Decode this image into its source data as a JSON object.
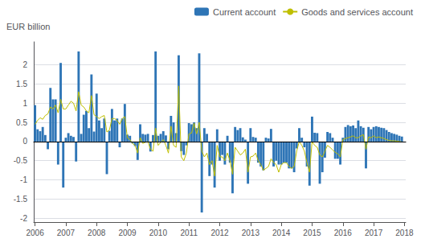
{
  "chart_data": {
    "type": "bar",
    "ylabel": "EUR billion",
    "x": [
      2006.0,
      2006.0833333333333,
      2006.1666666666667,
      2006.25,
      2006.3333333333333,
      2006.4166666666667,
      2006.5,
      2006.5833333333333,
      2006.6666666666667,
      2006.75,
      2006.8333333333333,
      2006.9166666666667,
      2007.0,
      2007.0833333333333,
      2007.1666666666667,
      2007.25,
      2007.3333333333333,
      2007.4166666666667,
      2007.5,
      2007.5833333333333,
      2007.6666666666667,
      2007.75,
      2007.8333333333333,
      2007.9166666666667,
      2008.0,
      2008.0833333333333,
      2008.1666666666667,
      2008.25,
      2008.3333333333333,
      2008.4166666666667,
      2008.5,
      2008.5833333333333,
      2008.6666666666667,
      2008.75,
      2008.8333333333333,
      2008.9166666666667,
      2009.0,
      2009.0833333333333,
      2009.1666666666667,
      2009.25,
      2009.3333333333333,
      2009.4166666666667,
      2009.5,
      2009.5833333333333,
      2009.6666666666667,
      2009.75,
      2009.8333333333333,
      2009.9166666666667,
      2010.0,
      2010.0833333333333,
      2010.1666666666667,
      2010.25,
      2010.3333333333333,
      2010.4166666666667,
      2010.5,
      2010.5833333333333,
      2010.6666666666667,
      2010.75,
      2010.8333333333333,
      2010.9166666666667,
      2011.0,
      2011.0833333333333,
      2011.1666666666667,
      2011.25,
      2011.3333333333333,
      2011.4166666666667,
      2011.5,
      2011.5833333333333,
      2011.6666666666667,
      2011.75,
      2011.8333333333333,
      2011.9166666666667,
      2012.0,
      2012.0833333333333,
      2012.1666666666667,
      2012.25,
      2012.3333333333333,
      2012.4166666666667,
      2012.5,
      2012.5833333333333,
      2012.6666666666667,
      2012.75,
      2012.8333333333333,
      2012.9166666666667,
      2013.0,
      2013.0833333333333,
      2013.1666666666667,
      2013.25,
      2013.3333333333333,
      2013.4166666666667,
      2013.5,
      2013.5833333333333,
      2013.6666666666667,
      2013.75,
      2013.8333333333333,
      2013.9166666666667,
      2014.0,
      2014.0833333333333,
      2014.1666666666667,
      2014.25,
      2014.3333333333333,
      2014.4166666666667,
      2014.5,
      2014.5833333333333,
      2014.6666666666667,
      2014.75,
      2014.8333333333333,
      2014.9166666666667,
      2015.0,
      2015.0833333333333,
      2015.1666666666667,
      2015.25,
      2015.3333333333333,
      2015.4166666666667,
      2015.5,
      2015.5833333333333,
      2015.6666666666667,
      2015.75,
      2015.8333333333333,
      2015.9166666666667,
      2016.0,
      2016.0833333333333,
      2016.1666666666667,
      2016.25,
      2016.3333333333333,
      2016.4166666666667,
      2016.5,
      2016.5833333333333,
      2016.6666666666667,
      2016.75,
      2016.8333333333333,
      2016.9166666666667,
      2017.0,
      2017.0833333333333,
      2017.1666666666667,
      2017.25,
      2017.3333333333333,
      2017.4166666666667,
      2017.5,
      2017.5833333333333,
      2017.6666666666667,
      2017.75,
      2017.8333333333333,
      2017.9166666666667
    ],
    "series": [
      {
        "name": "Current account",
        "type": "bar",
        "color": "#2E75B6",
        "values": [
          0.95,
          0.32,
          0.27,
          0.38,
          0.17,
          -0.2,
          1.4,
          1.1,
          1.1,
          -0.6,
          2.05,
          -1.2,
          0.1,
          0.22,
          0.15,
          0.12,
          -0.52,
          2.35,
          0.2,
          0.7,
          0.8,
          0.35,
          1.75,
          0.26,
          1.25,
          0.55,
          0.35,
          0.6,
          -0.85,
          0.28,
          0.85,
          0.55,
          0.6,
          -0.15,
          0.6,
          0.98,
          0.18,
          0.15,
          -0.05,
          -0.12,
          -0.48,
          0.45,
          0.2,
          0.18,
          0.2,
          -0.26,
          0.17,
          2.35,
          0.15,
          0.2,
          0.27,
          0.16,
          -0.2,
          0.67,
          0.5,
          0.22,
          2.25,
          -0.25,
          -0.35,
          -0.1,
          0.48,
          0.45,
          0.5,
          0.35,
          2.3,
          -1.85,
          0.35,
          0.2,
          -0.9,
          -0.6,
          -1.2,
          0.32,
          -0.5,
          -0.35,
          -0.6,
          0.15,
          -0.55,
          -1.35,
          0.38,
          0.3,
          0.35,
          0.11,
          0.05,
          -1.1,
          0.35,
          0.12,
          0.1,
          -0.55,
          -0.65,
          -0.75,
          0.1,
          0.08,
          0.33,
          -0.65,
          -0.5,
          -0.6,
          -0.6,
          -0.55,
          -0.55,
          -0.7,
          -0.7,
          -0.8,
          -0.18,
          0.35,
          0.1,
          -0.15,
          -0.65,
          -1.15,
          0.65,
          0.23,
          0.22,
          -1.1,
          -0.8,
          -0.42,
          0.25,
          0.22,
          0.1,
          -0.45,
          -0.45,
          -0.6,
          0.1,
          0.38,
          0.43,
          0.4,
          0.42,
          0.35,
          0.55,
          0.4,
          0.36,
          -0.7,
          0.38,
          0.32,
          0.38,
          0.4,
          0.38,
          0.36,
          0.35,
          0.3,
          0.25,
          0.22,
          0.2,
          0.18,
          0.15,
          0.13
        ]
      },
      {
        "name": "Goods and services account",
        "type": "line",
        "color": "#BFBF00",
        "values": [
          0.45,
          0.55,
          0.62,
          0.58,
          0.68,
          0.72,
          0.9,
          0.85,
          0.95,
          0.75,
          1.1,
          0.85,
          0.85,
          0.95,
          1.05,
          1.0,
          0.8,
          1.3,
          0.95,
          0.9,
          0.8,
          0.75,
          1.2,
          0.7,
          0.65,
          0.6,
          0.65,
          0.68,
          0.25,
          0.3,
          0.6,
          0.6,
          0.55,
          0.45,
          0.6,
          0.65,
          0.1,
          0.05,
          -0.05,
          -0.1,
          -0.3,
          0.1,
          -0.05,
          -0.02,
          0.0,
          -0.2,
          -0.25,
          0.35,
          -0.1,
          -0.02,
          0.05,
          -0.1,
          -0.3,
          0.4,
          -0.1,
          -0.15,
          1.45,
          -0.4,
          -0.5,
          -0.3,
          0.2,
          0.22,
          0.48,
          0.2,
          0.5,
          -0.25,
          -0.4,
          -0.3,
          -0.6,
          -0.5,
          -0.9,
          -0.1,
          -0.4,
          -0.4,
          -0.5,
          -0.3,
          -0.5,
          -0.85,
          -0.15,
          -0.25,
          -0.35,
          -0.3,
          -0.2,
          -0.8,
          -0.4,
          -0.38,
          -0.3,
          -0.5,
          -0.6,
          -0.75,
          -0.7,
          -0.65,
          -0.45,
          -0.55,
          -0.6,
          -0.8,
          -0.6,
          -0.55,
          -0.55,
          -0.65,
          -0.7,
          -0.65,
          -0.25,
          0.0,
          -0.1,
          -0.25,
          -0.55,
          -0.8,
          0.0,
          -0.1,
          -0.15,
          -0.35,
          -0.4,
          -0.25,
          -0.1,
          -0.15,
          -0.22,
          -0.28,
          -0.32,
          -0.4,
          0.05,
          0.08,
          0.1,
          0.12,
          0.15,
          0.1,
          0.1,
          0.15,
          0.18,
          -0.2,
          0.12,
          0.1,
          0.15,
          0.1,
          0.12,
          0.1,
          0.08,
          0.05,
          0.03,
          0.02,
          0.02,
          0.01,
          0.0,
          -0.01
        ]
      }
    ],
    "xlim": [
      2005.9583333333333,
      2018.0416666666667
    ],
    "xticks": [
      2006,
      2007,
      2008,
      2009,
      2010,
      2011,
      2012,
      2013,
      2014,
      2015,
      2016,
      2017,
      2018
    ],
    "ylim": [
      -2.1,
      2.6
    ],
    "yticks": [
      -2,
      -1.5,
      -1,
      -0.5,
      0,
      0.5,
      1,
      1.5,
      2
    ],
    "grid": true,
    "legend": "upper right"
  }
}
